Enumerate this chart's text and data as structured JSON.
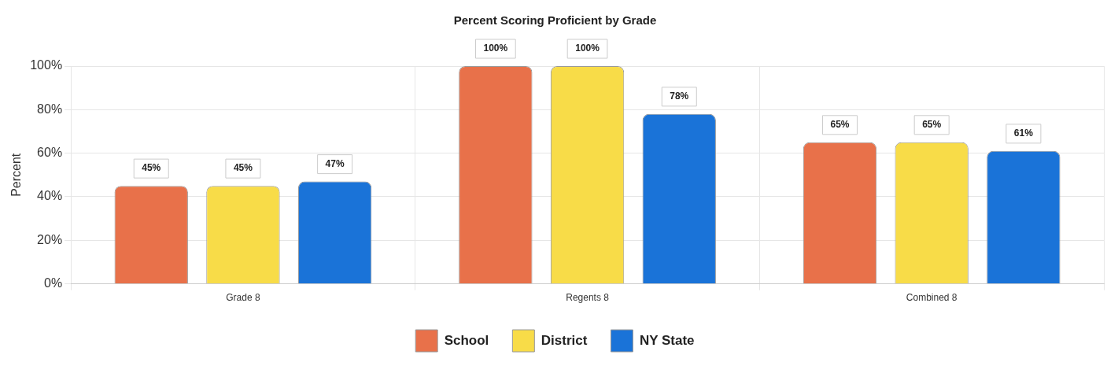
{
  "chart_data": {
    "type": "bar",
    "title": "Percent Scoring Proficient by Grade",
    "ylabel": "Percent",
    "categories": [
      "Grade 8",
      "Regents 8",
      "Combined 8"
    ],
    "series": [
      {
        "name": "School",
        "color": "#e8714a",
        "values": [
          45,
          100,
          65
        ],
        "value_labels": [
          "45%",
          "100%",
          "65%"
        ]
      },
      {
        "name": "District",
        "color": "#f8dc48",
        "values": [
          45,
          100,
          65
        ],
        "value_labels": [
          "45%",
          "100%",
          "65%"
        ]
      },
      {
        "name": "NY State",
        "color": "#1a73d8",
        "values": [
          47,
          78,
          61
        ],
        "value_labels": [
          "47%",
          "78%",
          "61%"
        ]
      }
    ],
    "ylim": [
      0,
      100
    ],
    "yticks": [
      {
        "value": 0,
        "label": "0%"
      },
      {
        "value": 20,
        "label": "20%"
      },
      {
        "value": 40,
        "label": "40%"
      },
      {
        "value": 60,
        "label": "60%"
      },
      {
        "value": 80,
        "label": "80%"
      },
      {
        "value": 100,
        "label": "100%"
      }
    ],
    "grid": true,
    "legend": "bottom"
  }
}
